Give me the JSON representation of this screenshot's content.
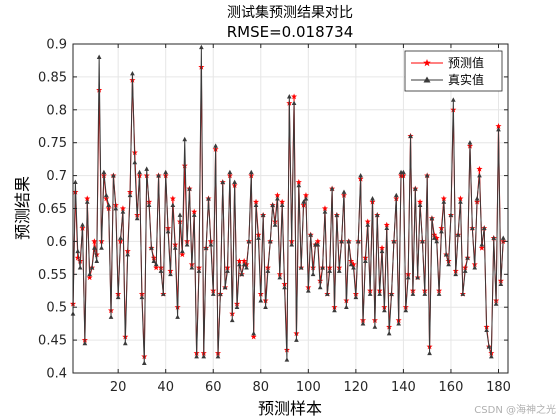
{
  "chart_data": {
    "type": "line",
    "title": "测试集预测结果对比",
    "subtitle": "RMSE=0.018734",
    "xlabel": "预测样本",
    "ylabel": "预测结果",
    "xlim": [
      1,
      184
    ],
    "ylim": [
      0.4,
      0.9
    ],
    "xticks": [
      20,
      40,
      60,
      80,
      100,
      120,
      140,
      160,
      180
    ],
    "yticks": [
      0.4,
      0.45,
      0.5,
      0.55,
      0.6,
      0.65,
      0.7,
      0.75,
      0.8,
      0.85,
      0.9
    ],
    "grid": true,
    "legend_position": "top-right",
    "series": [
      {
        "name": "预测值",
        "color": "#ff0000",
        "marker": "star",
        "values": [
          0.505,
          0.675,
          0.575,
          0.57,
          0.62,
          0.45,
          0.665,
          0.545,
          0.56,
          0.6,
          0.58,
          0.83,
          0.6,
          0.7,
          0.665,
          0.65,
          0.495,
          0.7,
          0.655,
          0.52,
          0.6,
          0.65,
          0.455,
          0.585,
          0.675,
          0.845,
          0.735,
          0.64,
          0.7,
          0.52,
          0.425,
          0.7,
          0.66,
          0.59,
          0.575,
          0.56,
          0.7,
          0.56,
          0.52,
          0.7,
          0.62,
          0.555,
          0.665,
          0.595,
          0.5,
          0.63,
          0.58,
          0.715,
          0.6,
          0.68,
          0.565,
          0.645,
          0.43,
          0.56,
          0.865,
          0.43,
          0.59,
          0.665,
          0.6,
          0.525,
          0.74,
          0.43,
          0.52,
          0.69,
          0.53,
          0.56,
          0.7,
          0.49,
          0.685,
          0.505,
          0.57,
          0.55,
          0.57,
          0.565,
          0.6,
          0.7,
          0.455,
          0.66,
          0.61,
          0.52,
          0.64,
          0.51,
          0.56,
          0.6,
          0.655,
          0.63,
          0.67,
          0.55,
          0.66,
          0.535,
          0.435,
          0.81,
          0.6,
          0.82,
          0.46,
          0.69,
          0.56,
          0.655,
          0.67,
          0.53,
          0.61,
          0.56,
          0.595,
          0.6,
          0.54,
          0.56,
          0.65,
          0.52,
          0.56,
          0.68,
          0.5,
          0.64,
          0.56,
          0.6,
          0.67,
          0.51,
          0.6,
          0.57,
          0.565,
          0.52,
          0.6,
          0.695,
          0.48,
          0.575,
          0.63,
          0.525,
          0.66,
          0.48,
          0.64,
          0.525,
          0.59,
          0.5,
          0.625,
          0.47,
          0.52,
          0.6,
          0.665,
          0.48,
          0.7,
          0.7,
          0.5,
          0.55,
          0.76,
          0.525,
          0.68,
          0.545,
          0.66,
          0.6,
          0.525,
          0.7,
          0.44,
          0.635,
          0.61,
          0.605,
          0.525,
          0.62,
          0.665,
          0.58,
          0.57,
          0.64,
          0.8,
          0.555,
          0.61,
          0.665,
          0.52,
          0.56,
          0.575,
          0.745,
          0.62,
          0.565,
          0.66,
          0.71,
          0.59,
          0.62,
          0.47,
          0.44,
          0.43,
          0.605,
          0.51,
          0.775,
          0.54,
          0.6
        ]
      },
      {
        "name": "真实值",
        "color": "#3a3a3a",
        "marker": "triangle",
        "values": [
          0.49,
          0.69,
          0.585,
          0.56,
          0.625,
          0.445,
          0.66,
          0.55,
          0.56,
          0.59,
          0.57,
          0.88,
          0.59,
          0.705,
          0.67,
          0.655,
          0.485,
          0.7,
          0.65,
          0.515,
          0.605,
          0.645,
          0.445,
          0.58,
          0.67,
          0.855,
          0.72,
          0.635,
          0.705,
          0.515,
          0.415,
          0.71,
          0.655,
          0.59,
          0.57,
          0.565,
          0.7,
          0.555,
          0.52,
          0.705,
          0.615,
          0.55,
          0.655,
          0.59,
          0.485,
          0.64,
          0.585,
          0.755,
          0.595,
          0.68,
          0.56,
          0.64,
          0.425,
          0.555,
          0.895,
          0.425,
          0.59,
          0.665,
          0.595,
          0.52,
          0.745,
          0.425,
          0.52,
          0.69,
          0.53,
          0.555,
          0.705,
          0.48,
          0.69,
          0.5,
          0.565,
          0.55,
          0.565,
          0.56,
          0.6,
          0.705,
          0.46,
          0.655,
          0.605,
          0.51,
          0.64,
          0.5,
          0.555,
          0.6,
          0.655,
          0.625,
          0.665,
          0.545,
          0.655,
          0.53,
          0.42,
          0.82,
          0.595,
          0.81,
          0.45,
          0.685,
          0.56,
          0.66,
          0.665,
          0.525,
          0.61,
          0.55,
          0.595,
          0.595,
          0.53,
          0.56,
          0.645,
          0.52,
          0.555,
          0.68,
          0.495,
          0.64,
          0.555,
          0.6,
          0.675,
          0.5,
          0.6,
          0.565,
          0.56,
          0.515,
          0.6,
          0.7,
          0.475,
          0.57,
          0.625,
          0.52,
          0.665,
          0.47,
          0.64,
          0.52,
          0.585,
          0.495,
          0.62,
          0.46,
          0.52,
          0.6,
          0.67,
          0.475,
          0.705,
          0.705,
          0.495,
          0.545,
          0.76,
          0.52,
          0.68,
          0.545,
          0.655,
          0.6,
          0.52,
          0.7,
          0.43,
          0.635,
          0.605,
          0.6,
          0.52,
          0.615,
          0.66,
          0.58,
          0.565,
          0.64,
          0.815,
          0.55,
          0.61,
          0.66,
          0.52,
          0.555,
          0.575,
          0.75,
          0.62,
          0.56,
          0.665,
          0.7,
          0.595,
          0.62,
          0.465,
          0.44,
          0.425,
          0.605,
          0.505,
          0.77,
          0.535,
          0.605
        ]
      }
    ]
  },
  "watermark": "CSDN @海神之光"
}
